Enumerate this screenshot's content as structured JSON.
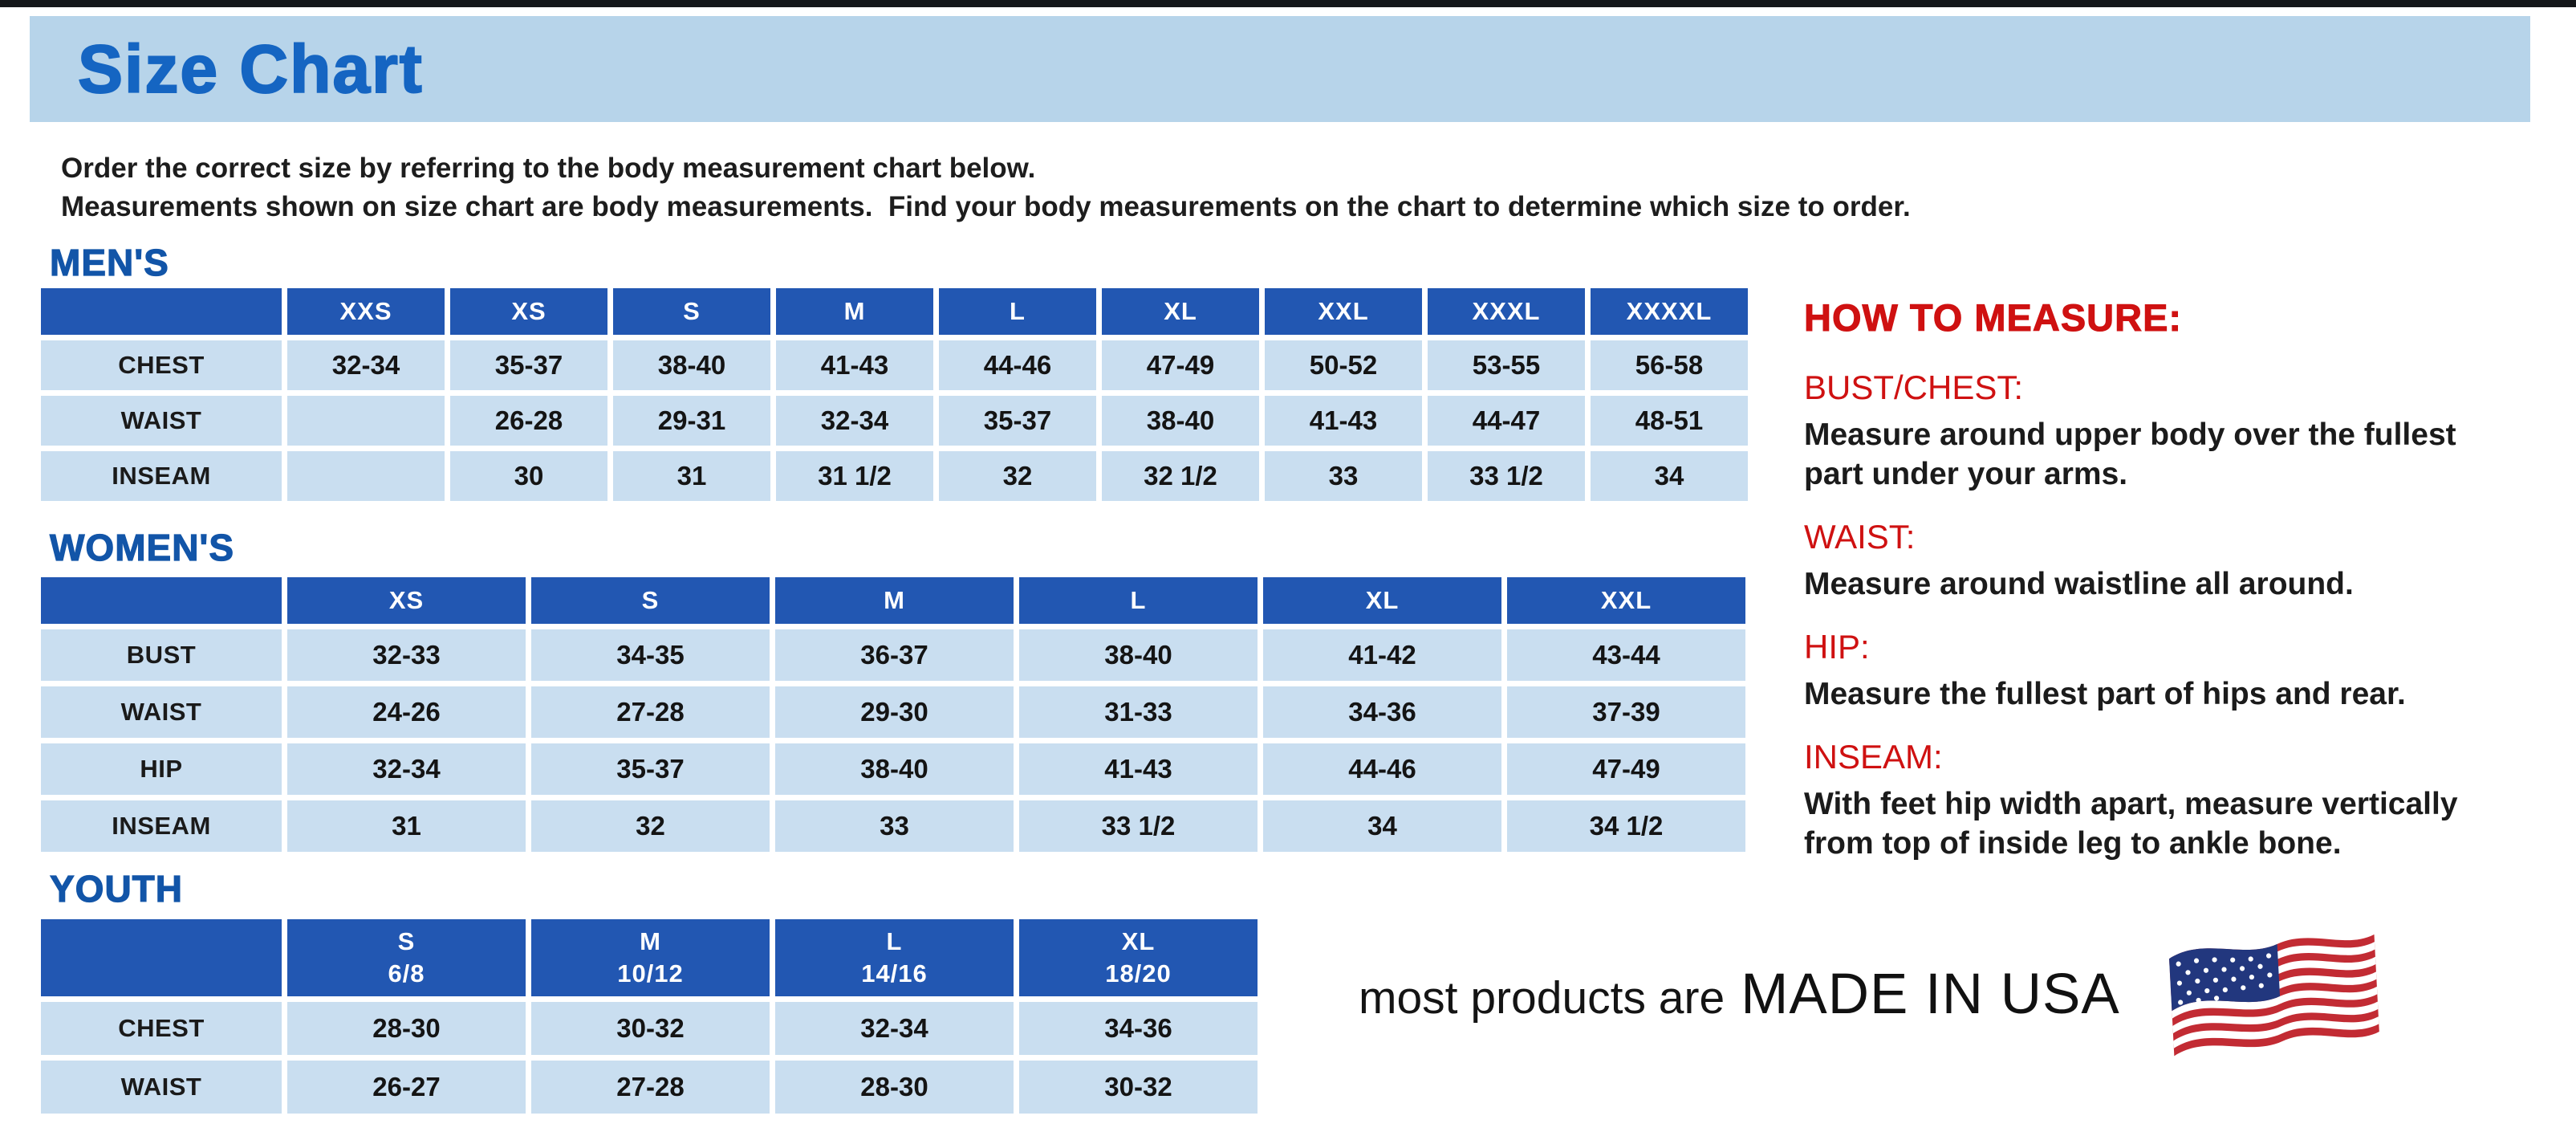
{
  "page": {
    "title": "Size Chart",
    "intro_line1": "Order the correct size by referring to the body measurement chart below.",
    "intro_line2": "Measurements shown on size chart are body measurements.  Find your body measurements on the chart to determine which size to order."
  },
  "tables": {
    "mens": {
      "heading": "MEN'S",
      "columns": [
        "XXS",
        "XS",
        "S",
        "M",
        "L",
        "XL",
        "XXL",
        "XXXL",
        "XXXXL"
      ],
      "rows": [
        {
          "label": "CHEST",
          "values": [
            "32-34",
            "35-37",
            "38-40",
            "41-43",
            "44-46",
            "47-49",
            "50-52",
            "53-55",
            "56-58"
          ]
        },
        {
          "label": "WAIST",
          "values": [
            "",
            "26-28",
            "29-31",
            "32-34",
            "35-37",
            "38-40",
            "41-43",
            "44-47",
            "48-51"
          ]
        },
        {
          "label": "INSEAM",
          "values": [
            "",
            "30",
            "31",
            "31 1/2",
            "32",
            "32 1/2",
            "33",
            "33 1/2",
            "34"
          ]
        }
      ]
    },
    "womens": {
      "heading": "WOMEN'S",
      "columns": [
        "XS",
        "S",
        "M",
        "L",
        "XL",
        "XXL"
      ],
      "rows": [
        {
          "label": "BUST",
          "values": [
            "32-33",
            "34-35",
            "36-37",
            "38-40",
            "41-42",
            "43-44"
          ]
        },
        {
          "label": "WAIST",
          "values": [
            "24-26",
            "27-28",
            "29-30",
            "31-33",
            "34-36",
            "37-39"
          ]
        },
        {
          "label": "HIP",
          "values": [
            "32-34",
            "35-37",
            "38-40",
            "41-43",
            "44-46",
            "47-49"
          ]
        },
        {
          "label": "INSEAM",
          "values": [
            "31",
            "32",
            "33",
            "33 1/2",
            "34",
            "34 1/2"
          ]
        }
      ]
    },
    "youth": {
      "heading": "YOUTH",
      "columns": [
        {
          "size": "S",
          "range": "6/8"
        },
        {
          "size": "M",
          "range": "10/12"
        },
        {
          "size": "L",
          "range": "14/16"
        },
        {
          "size": "XL",
          "range": "18/20"
        }
      ],
      "rows": [
        {
          "label": "CHEST",
          "values": [
            "28-30",
            "30-32",
            "32-34",
            "34-36"
          ]
        },
        {
          "label": "WAIST",
          "values": [
            "26-27",
            "27-28",
            "28-30",
            "30-32"
          ]
        }
      ]
    }
  },
  "how_to_measure": {
    "heading": "HOW TO MEASURE:",
    "items": [
      {
        "term": "BUST/CHEST:",
        "description": "Measure around upper body over the fullest part under your arms."
      },
      {
        "term": "WAIST:",
        "description": "Measure around waistline all around."
      },
      {
        "term": "HIP:",
        "description": "Measure the fullest part of hips and rear."
      },
      {
        "term": "INSEAM:",
        "description": "With feet hip width apart, measure vertically from top of inside leg to ankle bone."
      }
    ]
  },
  "footer": {
    "prefix": "most products are",
    "made_in": "MADE IN USA",
    "flag_icon": "us-flag-icon"
  },
  "colors": {
    "header_bar_bg": "#b7d4ea",
    "title_blue": "#1565c2",
    "heading_blue": "#1255a8",
    "table_header_bg": "#2257b2",
    "cell_bg": "#c9def0",
    "accent_red": "#cf1111",
    "text_dark": "#1d1d1d",
    "flag_red": "#c22b33",
    "flag_navy": "#22377e"
  }
}
